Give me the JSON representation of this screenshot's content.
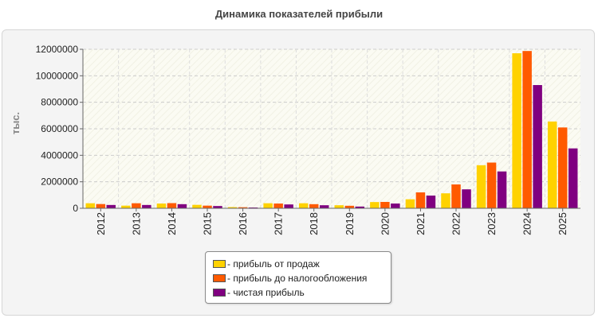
{
  "chart_data": {
    "type": "bar",
    "title": "Динамика показателей прибыли",
    "xlabel": "",
    "ylabel": "тыс.",
    "ylim": [
      0,
      12000000
    ],
    "yticks": [
      "0",
      "2000000",
      "4000000",
      "6000000",
      "8000000",
      "10000000",
      "12000000"
    ],
    "grid": true,
    "legend_position": "bottom",
    "categories": [
      "2012",
      "2013",
      "2014",
      "2015",
      "2016",
      "2017",
      "2018",
      "2019",
      "2020",
      "2021",
      "2022",
      "2023",
      "2024",
      "2025"
    ],
    "series": [
      {
        "name": "- прибыль от продаж",
        "color": "#ffd200",
        "values": [
          380000,
          200000,
          360000,
          260000,
          90000,
          380000,
          380000,
          230000,
          470000,
          680000,
          1130000,
          3250000,
          11700000,
          6550000
        ]
      },
      {
        "name": "- прибыль до налогообложения",
        "color": "#ff5a00",
        "values": [
          320000,
          380000,
          390000,
          200000,
          80000,
          360000,
          310000,
          190000,
          480000,
          1200000,
          1800000,
          3450000,
          11870000,
          6100000
        ]
      },
      {
        "name": "- чистая прибыль",
        "color": "#800080",
        "values": [
          250000,
          250000,
          310000,
          170000,
          60000,
          290000,
          230000,
          130000,
          360000,
          960000,
          1430000,
          2780000,
          9300000,
          4520000
        ]
      }
    ]
  }
}
